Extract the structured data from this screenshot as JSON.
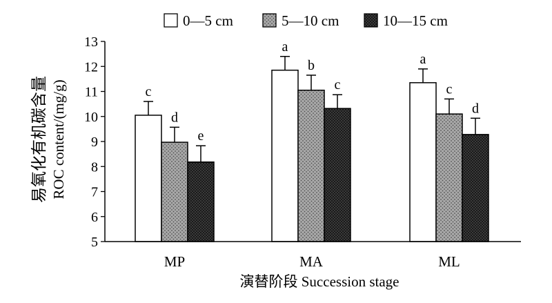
{
  "chart_data": {
    "type": "bar",
    "categories": [
      "MP",
      "MA",
      "ML"
    ],
    "series": [
      {
        "name": "0—5 cm",
        "values": [
          10.05,
          11.85,
          11.35
        ],
        "errors": [
          0.55,
          0.55,
          0.55
        ],
        "letters": [
          "c",
          "a",
          "a"
        ]
      },
      {
        "name": "5—10 cm",
        "values": [
          8.97,
          11.05,
          10.1
        ],
        "errors": [
          0.6,
          0.6,
          0.6
        ],
        "letters": [
          "d",
          "b",
          "c"
        ]
      },
      {
        "name": "10—15 cm",
        "values": [
          8.18,
          10.32,
          9.28
        ],
        "errors": [
          0.65,
          0.55,
          0.65
        ],
        "letters": [
          "e",
          "c",
          "d"
        ]
      }
    ],
    "ylim": [
      5,
      13
    ],
    "yticks": [
      5,
      6,
      7,
      8,
      9,
      10,
      11,
      12,
      13
    ],
    "ylabel_cn": "易氧化有机碳含量",
    "ylabel_en": "ROC content/(mg/g)",
    "xlabel": "演替阶段 Succession stage",
    "legend_position": "top",
    "grid": false
  }
}
